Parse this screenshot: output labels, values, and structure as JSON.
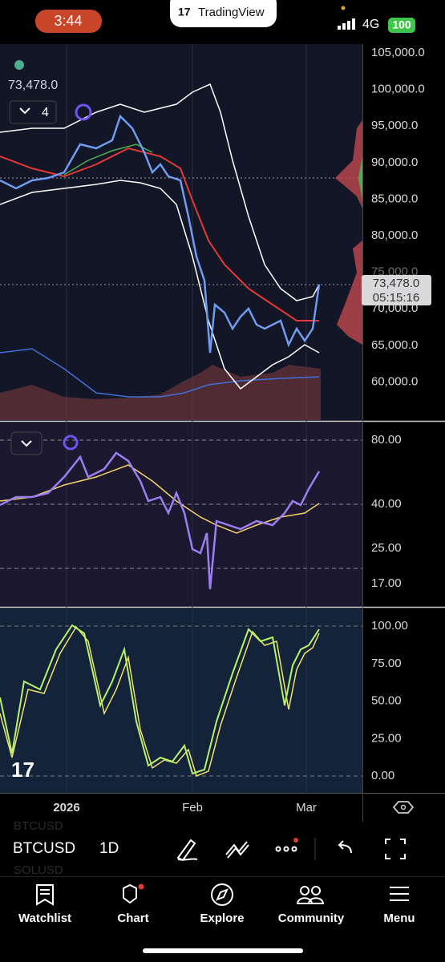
{
  "status_bar": {
    "time": "3:44",
    "app": "TradingView",
    "network": "4G",
    "battery": "100"
  },
  "chart": {
    "last_price": "73,478.0",
    "indicator_count": "4",
    "price_axis": [
      "105,000.0",
      "100,000.0",
      "95,000.0",
      "90,000.0",
      "85,000.0",
      "80,000.0",
      "75,000.0",
      "70,000.0",
      "65,000.0",
      "60,000.0"
    ],
    "price_tag": {
      "price": "73,478.0",
      "countdown": "05:15:16"
    },
    "rsi_axis": [
      "80.00",
      "40.00",
      "25.00",
      "17.00"
    ],
    "stoch_axis": [
      "100.00",
      "75.00",
      "50.00",
      "25.00",
      "0.00"
    ],
    "time_axis": [
      "2026",
      "Feb",
      "Mar"
    ]
  },
  "toolbar": {
    "symbol": "BTCUSD",
    "interval": "1D",
    "ghost_symbols": [
      "BTCUSD",
      "SOLUSD"
    ]
  },
  "nav": [
    "Watchlist",
    "Chart",
    "Explore",
    "Community",
    "Menu"
  ]
}
